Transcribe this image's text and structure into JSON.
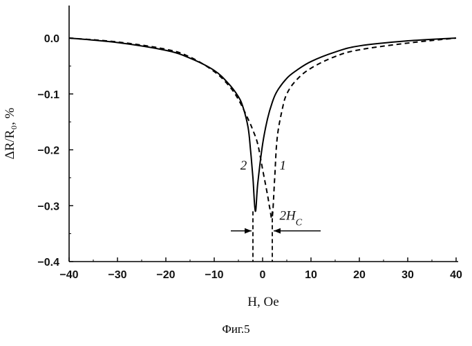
{
  "caption": "Фиг.5",
  "chart_data": {
    "type": "line",
    "xlabel": "H, Oe",
    "ylabel": "ΔR/R₀, %",
    "xlim": [
      -40,
      40
    ],
    "ylim": [
      -0.4,
      0.0
    ],
    "x_ticks": [
      -40,
      -30,
      -20,
      -10,
      0,
      10,
      20,
      30,
      40
    ],
    "x_tick_labels": [
      "−40",
      "−30",
      "−20",
      "−10",
      "0",
      "10",
      "20",
      "30",
      "40"
    ],
    "y_ticks": [
      0.0,
      -0.1,
      -0.2,
      -0.3,
      -0.4
    ],
    "y_tick_labels": [
      "0.0",
      "−0.1",
      "−0.2",
      "−0.3",
      "−0.4"
    ],
    "grid": false,
    "series": [
      {
        "name": "1",
        "style": "dashed",
        "color": "#000000",
        "x": [
          -40,
          -30,
          -20,
          -15,
          -10,
          -7,
          -5,
          -3,
          -2,
          -1,
          0,
          1,
          1.5,
          2,
          2.5,
          3,
          4,
          5,
          7,
          10,
          15,
          20,
          30,
          40
        ],
        "y": [
          0.0,
          -0.007,
          -0.02,
          -0.034,
          -0.06,
          -0.085,
          -0.11,
          -0.145,
          -0.165,
          -0.19,
          -0.235,
          -0.28,
          -0.305,
          -0.32,
          -0.25,
          -0.18,
          -0.13,
          -0.1,
          -0.075,
          -0.054,
          -0.033,
          -0.021,
          -0.009,
          0.0
        ]
      },
      {
        "name": "2",
        "style": "solid",
        "color": "#000000",
        "x": [
          -40,
          -30,
          -20,
          -15,
          -10,
          -7,
          -5,
          -4,
          -3,
          -2.5,
          -2,
          -1.5,
          -1,
          0,
          1,
          2,
          3,
          5,
          7,
          10,
          15,
          20,
          30,
          40
        ],
        "y": [
          0.0,
          -0.008,
          -0.022,
          -0.036,
          -0.058,
          -0.082,
          -0.105,
          -0.125,
          -0.16,
          -0.2,
          -0.25,
          -0.31,
          -0.26,
          -0.19,
          -0.145,
          -0.115,
          -0.095,
          -0.072,
          -0.058,
          -0.042,
          -0.025,
          -0.014,
          -0.005,
          0.0
        ]
      }
    ],
    "annotations": [
      {
        "text": "2",
        "x": -4.6,
        "y": -0.235
      },
      {
        "text": "1",
        "x": 3.5,
        "y": -0.235
      },
      {
        "text": "2H",
        "sub": "C",
        "x": 3.5,
        "y": -0.325
      }
    ],
    "coercivity_markers": {
      "left_x": -2.0,
      "right_x": 2.0,
      "arrow_y": -0.345,
      "label": "2Hc"
    }
  }
}
